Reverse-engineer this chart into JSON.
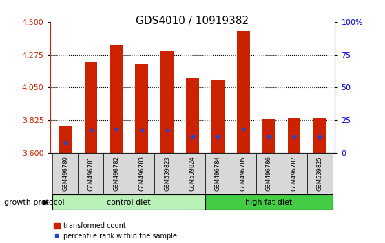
{
  "title": "GDS4010 / 10919382",
  "samples": [
    "GSM496780",
    "GSM496781",
    "GSM496782",
    "GSM496783",
    "GSM539823",
    "GSM539824",
    "GSM496784",
    "GSM496785",
    "GSM496786",
    "GSM496787",
    "GSM539825"
  ],
  "bar_tops": [
    3.79,
    4.22,
    4.34,
    4.21,
    4.3,
    4.12,
    4.1,
    4.44,
    3.83,
    3.84,
    3.84
  ],
  "bar_base": 3.6,
  "blue_dot_values": [
    3.67,
    3.755,
    3.765,
    3.755,
    3.755,
    3.715,
    3.715,
    3.765,
    3.715,
    3.715,
    3.715
  ],
  "ylim_left": [
    3.6,
    4.5
  ],
  "ylim_right": [
    0,
    100
  ],
  "yticks_left": [
    3.6,
    3.825,
    4.05,
    4.275,
    4.5
  ],
  "yticks_right": [
    0,
    25,
    50,
    75,
    100
  ],
  "gridlines": [
    3.825,
    4.05,
    4.275
  ],
  "bar_color": "#cc2200",
  "dot_color": "#2244cc",
  "control_count": 6,
  "high_fat_count": 5,
  "control_label": "control diet",
  "high_fat_label": "high fat diet",
  "group_label": "growth protocol",
  "legend_bar": "transformed count",
  "legend_dot": "percentile rank within the sample",
  "title_fontsize": 11,
  "tick_fontsize": 8,
  "sample_fontsize": 6,
  "group_fontsize": 8,
  "legend_fontsize": 7,
  "bar_color_left_axis": "#cc2200",
  "bar_color_right_axis": "#0000cc",
  "bar_width": 0.5,
  "sample_bg_color": "#d8d8d8",
  "control_bg_color": "#b8f0b8",
  "highfat_bg_color": "#44cc44"
}
